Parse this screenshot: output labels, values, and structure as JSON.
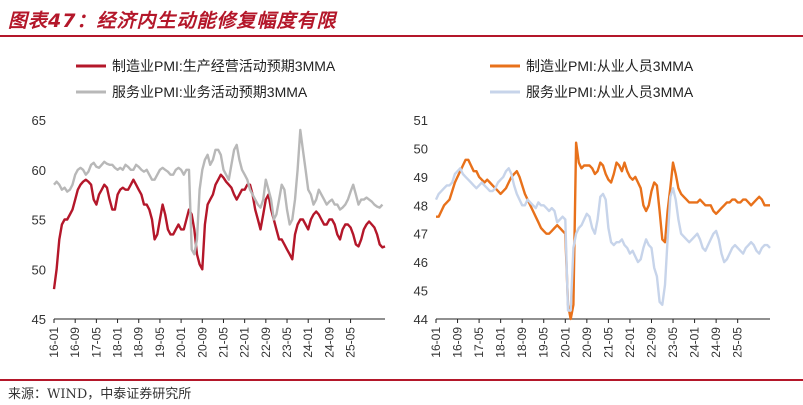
{
  "title": "图表47：经济内生动能修复幅度有限",
  "source": "来源：WIND，中泰证券研究所",
  "colors": {
    "brand": "#b4172a",
    "grey": "#b8b8b8",
    "orange": "#e8711b",
    "lightblue": "#c7d4ea"
  },
  "chart_data": [
    {
      "type": "line",
      "ylim": [
        45,
        65
      ],
      "yticks": [
        45,
        50,
        55,
        60,
        65
      ],
      "x_start": "2016-01",
      "x_end": "2025-05",
      "xticks": [
        "16-01",
        "16-09",
        "17-05",
        "18-01",
        "18-09",
        "19-05",
        "20-01",
        "20-09",
        "21-05",
        "22-01",
        "22-09",
        "23-05",
        "24-01",
        "24-09",
        "25-05"
      ],
      "legend_position": "top",
      "series": [
        {
          "name": "制造业PMI:生产经营活动预期3MMA",
          "color": "#b4172a",
          "values": [
            48,
            50,
            53,
            54.5,
            55,
            55,
            55.5,
            56,
            57,
            58,
            58.5,
            58.8,
            59,
            58.8,
            58.5,
            57,
            56.5,
            57.5,
            58,
            58.5,
            58.2,
            57,
            56,
            56,
            57.5,
            58,
            58.2,
            58,
            58,
            58.5,
            59,
            58.5,
            58,
            57.5,
            56.5,
            56.5,
            56,
            55,
            53,
            53.5,
            55,
            56.5,
            55.5,
            54,
            53.5,
            53.5,
            54,
            54.5,
            54,
            54,
            55,
            56,
            55.5,
            54,
            51.5,
            50.5,
            50,
            54.5,
            56.5,
            57,
            57.5,
            58.5,
            59,
            59.5,
            59.2,
            58.8,
            58.5,
            58.2,
            57.5,
            57,
            57.5,
            58,
            58,
            58.5,
            58.5,
            57.5,
            56,
            55,
            54,
            55.5,
            57,
            57.5,
            56,
            55,
            54,
            53,
            53,
            52.5,
            52,
            51.5,
            51,
            53.5,
            54.5,
            55,
            55,
            54.5,
            54,
            55,
            55.5,
            55.8,
            55.5,
            55,
            54.5,
            54.5,
            55,
            55,
            54.5,
            53.5,
            53,
            54,
            54.5,
            54.5,
            54.2,
            53.5,
            52.5,
            52.3,
            53,
            54,
            54.5,
            54.8,
            54.5,
            54.2,
            53.5,
            52.5,
            52.2,
            52.3
          ]
        },
        {
          "name": "服务业PMI:业务活动预期3MMA",
          "color": "#b8b8b8",
          "values": [
            58.5,
            58.8,
            58.5,
            58,
            58.2,
            57.8,
            58,
            58.5,
            59.5,
            60,
            60.2,
            60,
            59.5,
            59.8,
            60.5,
            60.7,
            60.3,
            60.2,
            60.5,
            60.8,
            60.6,
            60.5,
            60.5,
            60.2,
            60,
            60.2,
            60,
            60.5,
            60.3,
            60,
            60,
            60.5,
            60.3,
            60,
            59.8,
            60,
            59.5,
            59,
            59,
            59.5,
            60,
            60.2,
            60,
            59.8,
            59.5,
            59.5,
            60,
            60.2,
            60,
            59.5,
            60,
            60,
            52,
            51.5,
            53,
            58,
            60,
            61,
            61.5,
            60.5,
            61,
            62,
            62,
            61.5,
            60,
            59.5,
            59,
            60.5,
            62,
            62.5,
            61,
            60,
            59.5,
            59,
            58,
            57.5,
            57,
            56.5,
            56.2,
            57,
            59,
            58,
            57,
            55,
            55.5,
            57,
            58.5,
            58,
            56,
            54.5,
            55,
            57,
            60,
            64,
            62,
            60,
            58,
            57.5,
            56.5,
            57,
            58,
            57.5,
            57,
            56.5,
            56.8,
            57,
            56.5,
            56.5,
            56,
            56.2,
            56.5,
            57,
            57.8,
            58.5,
            57.5,
            56.5,
            57,
            57,
            57.2,
            57,
            56.8,
            56.5,
            56.3,
            56.2,
            56.5
          ]
        }
      ]
    },
    {
      "type": "line",
      "ylim": [
        44,
        51
      ],
      "yticks": [
        44,
        45,
        46,
        47,
        48,
        49,
        50,
        51
      ],
      "x_start": "2016-01",
      "x_end": "2025-05",
      "xticks": [
        "16-01",
        "16-09",
        "17-05",
        "18-01",
        "18-09",
        "19-05",
        "20-01",
        "20-09",
        "21-05",
        "22-01",
        "22-09",
        "23-05",
        "24-01",
        "24-09",
        "25-05"
      ],
      "legend_position": "top",
      "series": [
        {
          "name": "制造业PMI:从业人员3MMA",
          "color": "#e8711b",
          "values": [
            47.6,
            47.6,
            47.8,
            48,
            48.1,
            48.2,
            48.5,
            48.8,
            49,
            49.2,
            49.4,
            49.6,
            49.6,
            49.4,
            49.2,
            49.2,
            49,
            48.9,
            48.8,
            48.9,
            48.8,
            48.7,
            48.6,
            48.5,
            48.4,
            48.5,
            48.6,
            48.8,
            49,
            49.1,
            49.2,
            49,
            48.7,
            48.4,
            48.2,
            48,
            47.8,
            47.6,
            47.4,
            47.2,
            47.1,
            47,
            47,
            47.1,
            47.2,
            47.3,
            47.2,
            47.1,
            47,
            44.5,
            44,
            44.5,
            50.2,
            49.5,
            49.3,
            49.4,
            49.4,
            49.4,
            49.3,
            49.1,
            49.2,
            49.5,
            49.4,
            49.1,
            48.9,
            48.8,
            49.1,
            49.5,
            49.4,
            49.2,
            49.5,
            49.2,
            49,
            48.9,
            49,
            48.8,
            48.6,
            48,
            47.8,
            48,
            48.5,
            48.8,
            48.7,
            47.8,
            46.8,
            46.7,
            47.8,
            48.6,
            49.5,
            49.1,
            48.6,
            48.4,
            48.3,
            48.2,
            48.1,
            48.1,
            48.1,
            48.1,
            48.2,
            48.1,
            48,
            48,
            48,
            47.8,
            47.7,
            47.8,
            47.9,
            48,
            48.1,
            48.1,
            48.2,
            48.2,
            48.1,
            48.1,
            48.2,
            48.2,
            48.1,
            48,
            48.1,
            48.2,
            48.3,
            48.2,
            48,
            48,
            48
          ]
        },
        {
          "name": "服务业PMI:从业人员3MMA",
          "color": "#c7d4ea",
          "values": [
            48.2,
            48.4,
            48.5,
            48.6,
            48.7,
            48.7,
            48.8,
            49.1,
            49.2,
            49.3,
            49.1,
            49,
            48.9,
            48.8,
            48.7,
            48.6,
            48.7,
            48.8,
            48.7,
            48.6,
            48.5,
            48.5,
            48.6,
            48.8,
            48.9,
            49,
            49.2,
            49.3,
            49.1,
            48.7,
            48.4,
            48.2,
            48,
            48,
            48.2,
            48.1,
            48,
            47.9,
            48.1,
            48,
            48,
            47.9,
            47.8,
            47.9,
            47.8,
            47.4,
            47.5,
            47.6,
            47.5,
            44.3,
            44.3,
            46.5,
            47,
            47.2,
            47.3,
            47.5,
            47.7,
            47.6,
            47.2,
            47,
            47.5,
            48.3,
            48.4,
            48.2,
            47.2,
            46.7,
            46.6,
            46.7,
            46.7,
            46.8,
            46.6,
            46.5,
            46.3,
            46.4,
            46.2,
            46,
            46.1,
            46.5,
            46.8,
            46.6,
            46.5,
            45.8,
            45.5,
            44.6,
            44.5,
            45.2,
            46.8,
            48.3,
            48.6,
            48.2,
            47.5,
            47,
            46.9,
            46.8,
            46.7,
            46.8,
            46.9,
            47,
            46.8,
            46.5,
            46.4,
            46.6,
            46.8,
            47,
            47.1,
            46.8,
            46.3,
            46,
            46.1,
            46.3,
            46.5,
            46.6,
            46.5,
            46.4,
            46.3,
            46.5,
            46.6,
            46.7,
            46.6,
            46.4,
            46.3,
            46.5,
            46.6,
            46.6,
            46.5
          ]
        }
      ]
    }
  ]
}
